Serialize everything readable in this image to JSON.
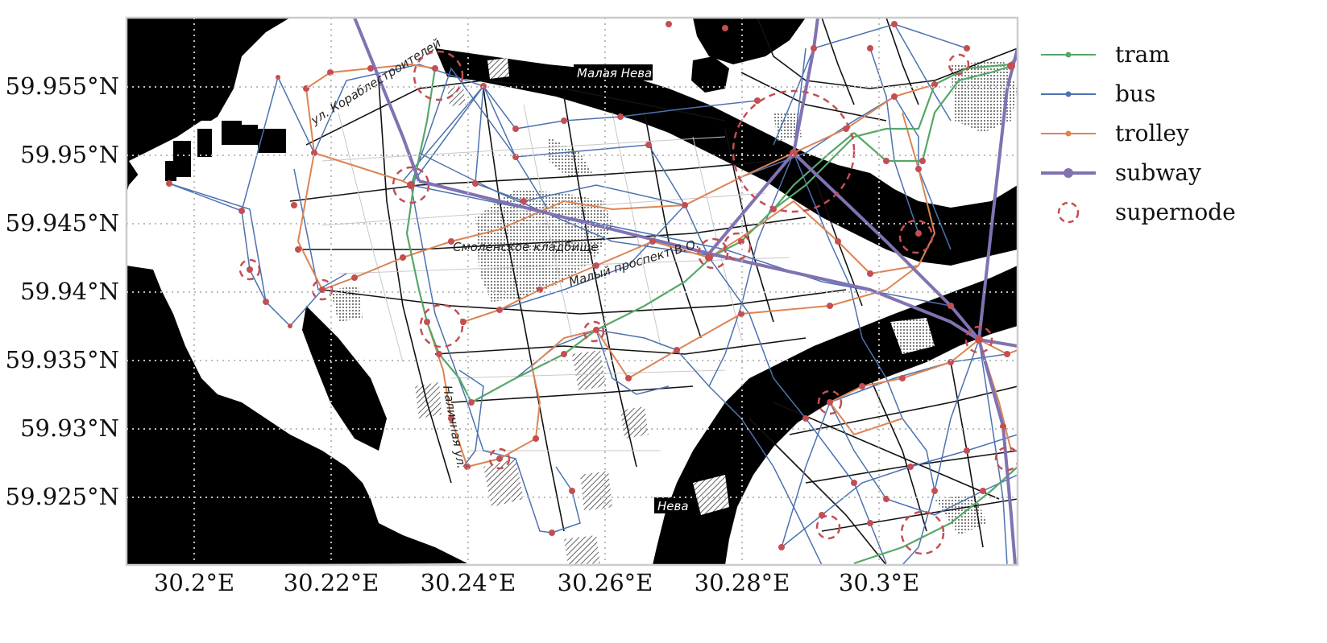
{
  "figure": {
    "x_ticks": [
      "30.2°E",
      "30.22°E",
      "30.24°E",
      "30.26°E",
      "30.28°E",
      "30.3°E"
    ],
    "y_ticks": [
      "59.955°N",
      "59.95°N",
      "59.945°N",
      "59.94°N",
      "59.935°N",
      "59.93°N",
      "59.925°N"
    ],
    "legend": [
      {
        "label": "tram",
        "color": "#55a868",
        "style": "line-dot"
      },
      {
        "label": "bus",
        "color": "#4c72b0",
        "style": "line-dot"
      },
      {
        "label": "trolley",
        "color": "#dd8452",
        "style": "line-dot"
      },
      {
        "label": "subway",
        "color": "#8172b2",
        "style": "thick-line-dot"
      },
      {
        "label": "supernode",
        "color": "#c44e52",
        "style": "dashed-circle"
      }
    ],
    "map_labels": {
      "malaya_neva": "Малая Нева",
      "neva": "Нева",
      "smolenskoe": "Смоленское кладбище",
      "maly_prospekt": "Малый проспект В.О.",
      "korablestroiteley": "ул. Кораблестроителей",
      "nalichnaya": "Наличная ул."
    },
    "colors": {
      "tram": "#55a868",
      "bus": "#4c72b0",
      "trolley": "#dd8452",
      "subway": "#8172b2",
      "supernode": "#c44e52",
      "water": "#000000",
      "land": "#ffffff"
    }
  }
}
